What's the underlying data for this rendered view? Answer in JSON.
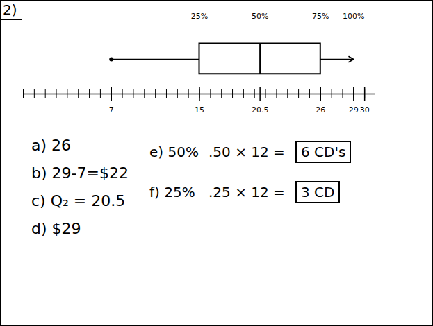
{
  "chart_data": {
    "type": "box",
    "title": "2)",
    "min": 7,
    "q1": 15,
    "median": 20.5,
    "q3": 26,
    "max": 29,
    "xlim": [
      -1,
      31
    ],
    "xticks": [
      7,
      15,
      20.5,
      26,
      29,
      30
    ],
    "quartile_labels": [
      "25%",
      "50%",
      "75%",
      "100%"
    ],
    "annotations": [
      {
        "text": "a) 26"
      },
      {
        "text": "b) 29-7=$22"
      },
      {
        "text": "c) Q₂ = 20.5"
      },
      {
        "text": "d) $29"
      },
      {
        "text": "e) 50%",
        "work": ".50 × 12 =",
        "answer": "6 CD's"
      },
      {
        "text": "f) 25%",
        "work": ".25 × 12 =",
        "answer": "3 CD"
      }
    ]
  }
}
